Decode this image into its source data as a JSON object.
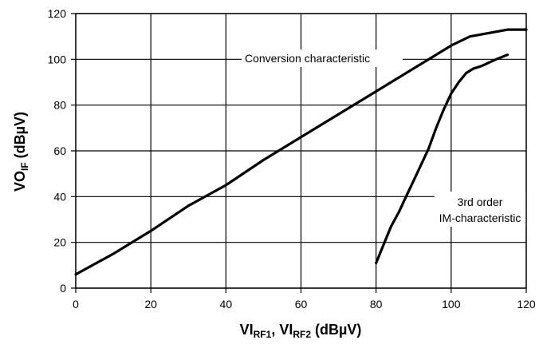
{
  "chart_data": {
    "type": "line",
    "title": "",
    "xlabel": {
      "main": "VI",
      "sub1": "RF1",
      "sep": ", VI",
      "sub2": "RF2",
      "unit": " (dBµV)"
    },
    "ylabel": {
      "main": "VO",
      "sub": "IF",
      "unit": " (dBµV)"
    },
    "xlim": [
      0,
      120
    ],
    "ylim": [
      0,
      120
    ],
    "x_ticks": [
      "0",
      "20",
      "40",
      "60",
      "80",
      "100",
      "120"
    ],
    "y_ticks": [
      "0",
      "20",
      "40",
      "60",
      "80",
      "100",
      "120"
    ],
    "grid": true,
    "series": [
      {
        "name": "Conversion characteristic",
        "points": [
          [
            0,
            6
          ],
          [
            10,
            15
          ],
          [
            20,
            25
          ],
          [
            30,
            36
          ],
          [
            40,
            45
          ],
          [
            50,
            56
          ],
          [
            60,
            66
          ],
          [
            70,
            76
          ],
          [
            80,
            86
          ],
          [
            85,
            91
          ],
          [
            90,
            96
          ],
          [
            95,
            101
          ],
          [
            100,
            106
          ],
          [
            105,
            110
          ],
          [
            110,
            111.5
          ],
          [
            115,
            113
          ],
          [
            120,
            113
          ]
        ]
      },
      {
        "name_lines": [
          "3rd order",
          "IM-characteristic"
        ],
        "points": [
          [
            80,
            11
          ],
          [
            82,
            19
          ],
          [
            84,
            27
          ],
          [
            86,
            33
          ],
          [
            88,
            40
          ],
          [
            90,
            47
          ],
          [
            92,
            54
          ],
          [
            94,
            61
          ],
          [
            96,
            70
          ],
          [
            98,
            78
          ],
          [
            100,
            85
          ],
          [
            102,
            90
          ],
          [
            104,
            94
          ],
          [
            106,
            96
          ],
          [
            108,
            97
          ],
          [
            110,
            98.5
          ],
          [
            112,
            100
          ],
          [
            115,
            102
          ]
        ]
      }
    ]
  }
}
